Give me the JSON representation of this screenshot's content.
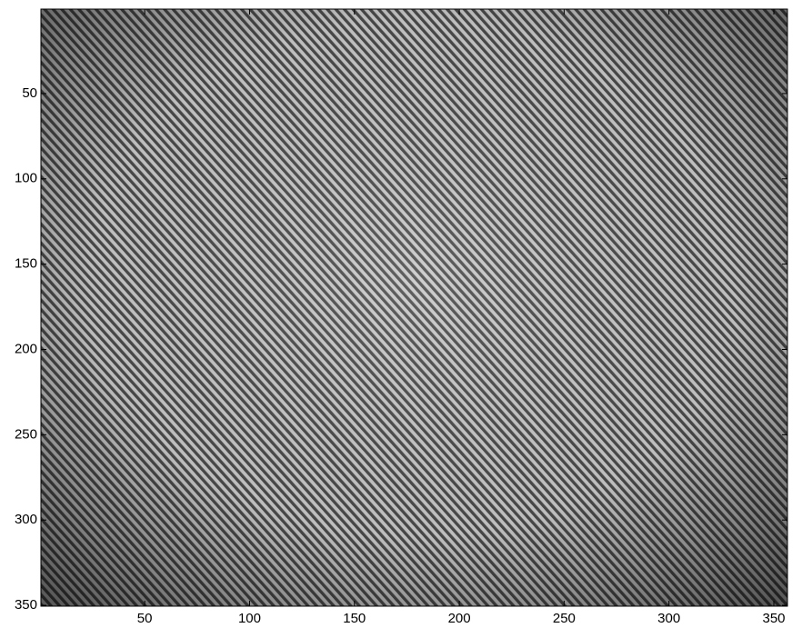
{
  "chart_data": {
    "type": "image",
    "xlim": [
      0.5,
      356.5
    ],
    "ylim": [
      0.5,
      350.5
    ],
    "y_reversed": true,
    "xticks": [
      50,
      100,
      150,
      200,
      250,
      300,
      350
    ],
    "yticks": [
      50,
      100,
      150,
      200,
      250,
      300,
      350
    ]
  }
}
